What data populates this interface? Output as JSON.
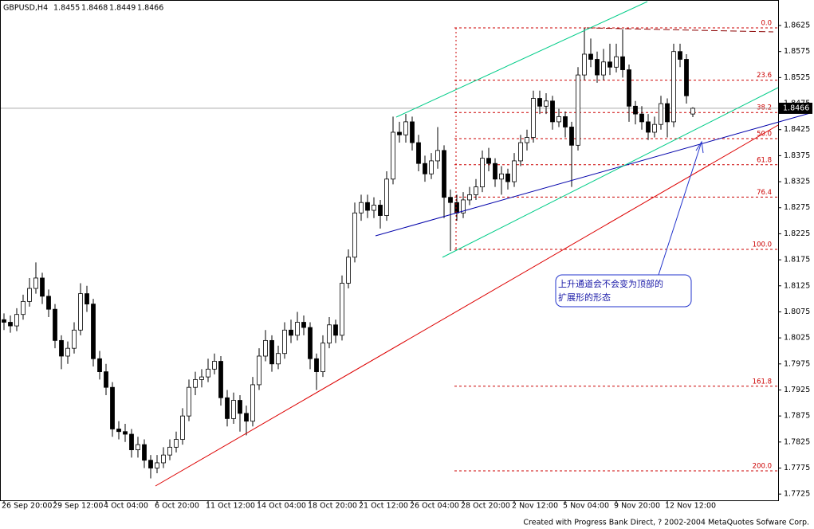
{
  "chart_data": {
    "type": "candlestick",
    "title": "GBPUSD,H4",
    "footer": "Created with Progress Bank Direct, ? 2002-2004 MetaQuotes Sofware Corp.",
    "annotation": [
      "上升通道会不会变为顶部的",
      "扩展形的形态"
    ],
    "categories": [
      "26 Sep 20:00",
      null,
      null,
      null,
      null,
      null,
      null,
      null,
      "29 Sep 12:00",
      null,
      null,
      null,
      null,
      null,
      null,
      null,
      "4 Oct 04:00",
      null,
      null,
      null,
      null,
      null,
      null,
      null,
      "6 Oct 20:00",
      null,
      null,
      null,
      null,
      null,
      null,
      null,
      "11 Oct 12:00",
      null,
      null,
      null,
      null,
      null,
      null,
      null,
      "14 Oct 04:00",
      null,
      null,
      null,
      null,
      null,
      null,
      null,
      "18 Oct 20:00",
      null,
      null,
      null,
      null,
      null,
      null,
      null,
      "21 Oct 12:00",
      null,
      null,
      null,
      null,
      null,
      null,
      null,
      "26 Oct 04:00",
      null,
      null,
      null,
      null,
      null,
      null,
      null,
      "28 Oct 20:00",
      null,
      null,
      null,
      null,
      null,
      null,
      null,
      "2 Nov 12:00",
      null,
      null,
      null,
      null,
      null,
      null,
      null,
      "5 Nov 04:00",
      null,
      null,
      null,
      null,
      null,
      null,
      null,
      "9 Nov 20:00",
      null,
      null,
      null,
      null,
      null,
      null,
      null,
      "12 Nov 12:00",
      null,
      null,
      null,
      null
    ],
    "open": [
      1.806,
      1.8055,
      1.8048,
      1.807,
      1.8095,
      1.812,
      1.814,
      1.8105,
      1.808,
      1.802,
      1.799,
      1.8005,
      1.804,
      1.811,
      1.809,
      1.7985,
      1.796,
      1.793,
      1.785,
      1.7845,
      1.784,
      1.781,
      1.782,
      1.779,
      1.7775,
      1.7785,
      1.78,
      1.7815,
      1.783,
      1.7875,
      1.793,
      1.7945,
      1.795,
      1.7965,
      1.798,
      1.791,
      1.787,
      1.7905,
      1.788,
      1.7865,
      1.7935,
      1.799,
      1.802,
      1.7975,
      1.7995,
      1.804,
      1.803,
      1.8055,
      1.8045,
      1.7985,
      1.796,
      1.8015,
      1.805,
      1.803,
      1.813,
      1.818,
      1.8265,
      1.8285,
      1.827,
      1.828,
      1.826,
      1.833,
      1.842,
      1.8415,
      1.844,
      1.84,
      1.836,
      1.834,
      1.8365,
      1.8385,
      1.8295,
      1.8285,
      1.8265,
      1.829,
      1.83,
      1.8315,
      1.837,
      1.836,
      1.833,
      1.834,
      1.8325,
      1.8365,
      1.84,
      1.841,
      1.8485,
      1.847,
      1.848,
      1.844,
      1.845,
      1.843,
      1.8395,
      1.853,
      1.857,
      1.856,
      1.853,
      1.8555,
      1.8545,
      1.8565,
      1.854,
      1.847,
      1.8455,
      1.844,
      1.842,
      1.8435,
      1.8475,
      1.844,
      1.8575,
      1.856,
      1.8455
    ],
    "high": [
      1.8072,
      1.8068,
      1.8082,
      1.8108,
      1.814,
      1.817,
      1.815,
      1.8118,
      1.809,
      1.803,
      1.8018,
      1.8055,
      1.813,
      1.8125,
      1.81,
      1.8,
      1.7975,
      1.794,
      1.7865,
      1.786,
      1.785,
      1.7835,
      1.783,
      1.78,
      1.78,
      1.7815,
      1.783,
      1.7845,
      1.789,
      1.7945,
      1.796,
      1.7965,
      1.7985,
      1.7995,
      1.799,
      1.7925,
      1.792,
      1.7915,
      1.7895,
      1.795,
      1.8005,
      1.804,
      1.803,
      1.801,
      1.8055,
      1.806,
      1.8075,
      1.8068,
      1.8055,
      1.7995,
      1.803,
      1.8065,
      1.806,
      1.8145,
      1.8195,
      1.8285,
      1.83,
      1.83,
      1.8295,
      1.829,
      1.8345,
      1.845,
      1.844,
      1.8455,
      1.845,
      1.8415,
      1.8375,
      1.838,
      1.843,
      1.8395,
      1.831,
      1.83,
      1.8305,
      1.8315,
      1.833,
      1.8385,
      1.839,
      1.837,
      1.8355,
      1.835,
      1.838,
      1.8415,
      1.8425,
      1.85,
      1.85,
      1.8495,
      1.849,
      1.8465,
      1.846,
      1.844,
      1.8545,
      1.862,
      1.86,
      1.8575,
      1.858,
      1.859,
      1.859,
      1.8618,
      1.855,
      1.848,
      1.847,
      1.8455,
      1.845,
      1.849,
      1.8485,
      1.859,
      1.859,
      1.857,
      1.8468
    ],
    "low": [
      1.804,
      1.8035,
      1.8038,
      1.806,
      1.8085,
      1.811,
      1.809,
      1.8065,
      1.8005,
      1.7965,
      1.7975,
      1.7995,
      1.803,
      1.8075,
      1.797,
      1.7945,
      1.7915,
      1.7835,
      1.783,
      1.7825,
      1.7795,
      1.7795,
      1.7775,
      1.7755,
      1.7765,
      1.7775,
      1.779,
      1.7805,
      1.782,
      1.7865,
      1.7915,
      1.793,
      1.794,
      1.7955,
      1.7895,
      1.7855,
      1.786,
      1.7845,
      1.7838,
      1.7855,
      1.7925,
      1.798,
      1.796,
      1.7965,
      1.7985,
      1.8015,
      1.802,
      1.803,
      1.7965,
      1.7925,
      1.795,
      1.8005,
      1.8015,
      1.802,
      1.812,
      1.817,
      1.825,
      1.8255,
      1.8255,
      1.8235,
      1.825,
      1.832,
      1.84,
      1.84,
      1.8385,
      1.8345,
      1.8325,
      1.833,
      1.835,
      1.8255,
      1.8192,
      1.825,
      1.8255,
      1.828,
      1.829,
      1.8305,
      1.8345,
      1.8315,
      1.83,
      1.831,
      1.8315,
      1.8355,
      1.8385,
      1.84,
      1.8455,
      1.8455,
      1.8425,
      1.843,
      1.841,
      1.8315,
      1.8385,
      1.852,
      1.8545,
      1.8515,
      1.852,
      1.853,
      1.8535,
      1.8525,
      1.844,
      1.8435,
      1.8425,
      1.8405,
      1.841,
      1.8425,
      1.841,
      1.843,
      1.8545,
      1.8475,
      1.8449
    ],
    "close": [
      1.8055,
      1.8048,
      1.807,
      1.8095,
      1.812,
      1.814,
      1.8105,
      1.808,
      1.802,
      1.799,
      1.8005,
      1.804,
      1.811,
      1.809,
      1.7985,
      1.796,
      1.793,
      1.785,
      1.7845,
      1.784,
      1.781,
      1.782,
      1.779,
      1.7775,
      1.7785,
      1.78,
      1.7815,
      1.783,
      1.7875,
      1.793,
      1.7945,
      1.795,
      1.7965,
      1.798,
      1.791,
      1.787,
      1.7905,
      1.788,
      1.7865,
      1.7935,
      1.799,
      1.802,
      1.7975,
      1.7995,
      1.804,
      1.803,
      1.8055,
      1.8045,
      1.7985,
      1.796,
      1.8015,
      1.805,
      1.803,
      1.813,
      1.818,
      1.8265,
      1.8285,
      1.827,
      1.828,
      1.826,
      1.833,
      1.842,
      1.8415,
      1.844,
      1.84,
      1.836,
      1.834,
      1.8365,
      1.8385,
      1.8295,
      1.8285,
      1.8265,
      1.829,
      1.83,
      1.8315,
      1.837,
      1.836,
      1.833,
      1.834,
      1.8325,
      1.8365,
      1.84,
      1.841,
      1.8485,
      1.847,
      1.848,
      1.844,
      1.845,
      1.843,
      1.8395,
      1.853,
      1.857,
      1.856,
      1.853,
      1.8555,
      1.8545,
      1.8565,
      1.854,
      1.847,
      1.8455,
      1.844,
      1.842,
      1.8435,
      1.8475,
      1.844,
      1.8575,
      1.856,
      1.849,
      1.8466
    ],
    "ylim": [
      1.7713,
      1.8674
    ],
    "yticks": [
      1.8625,
      1.8575,
      1.8525,
      1.8475,
      1.8425,
      1.8375,
      1.8325,
      1.8275,
      1.8225,
      1.8175,
      1.8125,
      1.8075,
      1.8025,
      1.7975,
      1.7925,
      1.7875,
      1.7825,
      1.7775,
      1.7725
    ],
    "fib_levels": [
      {
        "value": 0,
        "label": "0.0"
      },
      23.6,
      38.2,
      {
        "value": 50,
        "label": "50.0"
      },
      61.8,
      76.4,
      {
        "value": 100,
        "label": "100.0"
      },
      161.8,
      {
        "value": 200,
        "label": "200.0"
      }
    ],
    "up_color": "#ffffff",
    "down_color": "#000000",
    "fib_color": "#cc0000"
  }
}
